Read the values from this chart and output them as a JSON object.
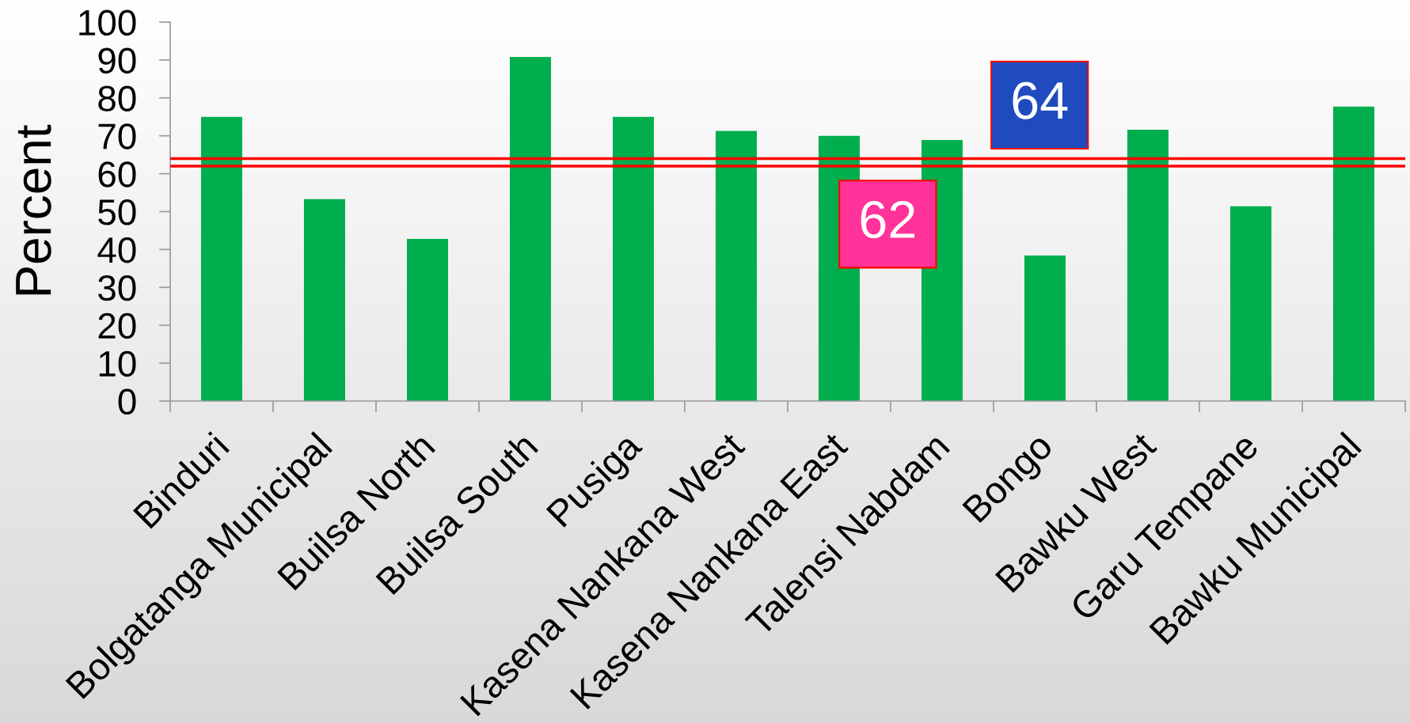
{
  "chart_data": {
    "type": "bar",
    "ylabel": "Percent",
    "categories": [
      "Binduri",
      "Bolgatanga Municipal",
      "Builsa North",
      "Builsa South",
      "Pusiga",
      "Kasena Nankana West",
      "Kasena Nankana East",
      "Talensi Nabdam",
      "Bongo",
      "Bawku West",
      "Garu Tempane",
      "Bawku Municipal"
    ],
    "values": [
      75,
      53.3,
      42.8,
      90.8,
      75,
      71.3,
      70,
      68.9,
      38.4,
      71.6,
      51.4,
      77.7
    ],
    "color": "#00ae4e",
    "ylim": [
      0,
      100
    ],
    "yticks": [
      0,
      10,
      20,
      30,
      40,
      50,
      60,
      70,
      80,
      90,
      100
    ],
    "ref_lines": [
      {
        "axis": "y",
        "value": 62,
        "label": "62",
        "color": "#ff0000"
      },
      {
        "axis": "y",
        "value": 64,
        "label": "64",
        "color": "#ff0000"
      }
    ]
  }
}
